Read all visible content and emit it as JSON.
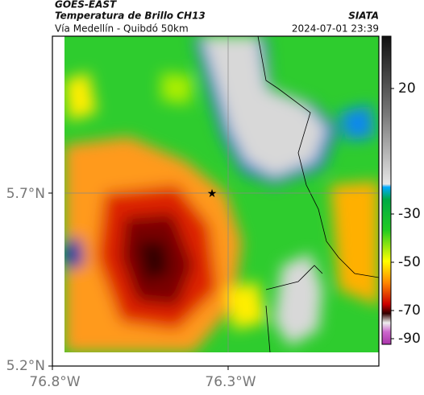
{
  "header": {
    "title": "GOES-EAST",
    "subtitle": "Temperatura de Brillo CH13",
    "location": "Vía Medellín - Quibdó 50km",
    "source": "SIATA",
    "datetime": "2024-07-01 23:39"
  },
  "map": {
    "x_ticks": [
      "76.8°W",
      "76.3°W"
    ],
    "y_ticks": [
      "5.7°N",
      "5.2°N"
    ]
  },
  "colorbar": {
    "ticks": [
      20,
      -30,
      -50,
      -70,
      -90
    ]
  }
}
